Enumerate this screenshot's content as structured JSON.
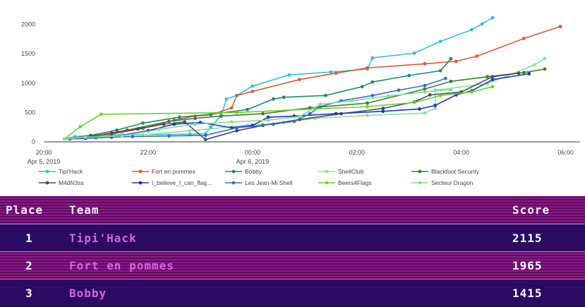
{
  "chart_data": {
    "type": "line",
    "ylim": [
      0,
      2200
    ],
    "y_ticks": [
      0,
      500,
      1000,
      1500,
      2000
    ],
    "x_range_hours": [
      20,
      30.1
    ],
    "x_ticks": [
      {
        "hour": 20,
        "label": "20:00",
        "sublabel": "Apr 5, 2019"
      },
      {
        "hour": 22,
        "label": "22:00",
        "sublabel": ""
      },
      {
        "hour": 24,
        "label": "00:00",
        "sublabel": "Apr 6, 2019"
      },
      {
        "hour": 26,
        "label": "02:00",
        "sublabel": ""
      },
      {
        "hour": 28,
        "label": "04:00",
        "sublabel": ""
      },
      {
        "hour": 30,
        "label": "06:00",
        "sublabel": ""
      }
    ],
    "series": [
      {
        "name": "Tipi'Hack",
        "legend_label": "Tipi'Hack",
        "color": "#2ec4c6",
        "points": [
          [
            20.4,
            50
          ],
          [
            20.6,
            90
          ],
          [
            20.9,
            110
          ],
          [
            21.5,
            120
          ],
          [
            22.8,
            130
          ],
          [
            23.1,
            140
          ],
          [
            23.2,
            250
          ],
          [
            23.4,
            450
          ],
          [
            23.5,
            730
          ],
          [
            23.7,
            790
          ],
          [
            24,
            950
          ],
          [
            24.7,
            1140
          ],
          [
            25.5,
            1190
          ],
          [
            26.2,
            1240
          ],
          [
            26.3,
            1430
          ],
          [
            27.1,
            1510
          ],
          [
            27.6,
            1710
          ],
          [
            28.2,
            1910
          ],
          [
            28.4,
            2010
          ],
          [
            28.6,
            2115
          ]
        ]
      },
      {
        "name": "Fort en pommes",
        "legend_label": "Fort en pommes",
        "color": "#d9593a",
        "points": [
          [
            20.4,
            50
          ],
          [
            20.8,
            90
          ],
          [
            21.3,
            130
          ],
          [
            21.9,
            230
          ],
          [
            22.5,
            370
          ],
          [
            22.9,
            440
          ],
          [
            23.2,
            460
          ],
          [
            23.6,
            580
          ],
          [
            23.7,
            790
          ],
          [
            24,
            860
          ],
          [
            24.9,
            1060
          ],
          [
            25.6,
            1170
          ],
          [
            26.2,
            1260
          ],
          [
            27.3,
            1330
          ],
          [
            27.9,
            1370
          ],
          [
            28.3,
            1460
          ],
          [
            29.2,
            1760
          ],
          [
            29.9,
            1965
          ]
        ]
      },
      {
        "name": "Bobby",
        "legend_label": "Bobby",
        "color": "#1e8c66",
        "points": [
          [
            20.5,
            50
          ],
          [
            20.9,
            110
          ],
          [
            21.4,
            200
          ],
          [
            21.9,
            320
          ],
          [
            22.6,
            420
          ],
          [
            23.2,
            470
          ],
          [
            23.9,
            550
          ],
          [
            24.4,
            730
          ],
          [
            24.6,
            760
          ],
          [
            25.4,
            790
          ],
          [
            26.1,
            940
          ],
          [
            26.3,
            1020
          ],
          [
            27,
            1130
          ],
          [
            27.6,
            1210
          ],
          [
            27.8,
            1415
          ]
        ]
      },
      {
        "name": "ShellClub",
        "legend_label": "ShellClub",
        "color": "#8fe09a",
        "points": [
          [
            20.4,
            50
          ],
          [
            21,
            90
          ],
          [
            21.9,
            120
          ],
          [
            22.8,
            190
          ],
          [
            23.9,
            280
          ],
          [
            24.6,
            330
          ],
          [
            25.2,
            400
          ],
          [
            26.2,
            450
          ],
          [
            27.3,
            490
          ],
          [
            27.5,
            570
          ],
          [
            27.5,
            880
          ],
          [
            28.5,
            990
          ],
          [
            29.4,
            1310
          ],
          [
            29.6,
            1420
          ]
        ]
      },
      {
        "name": "Blackfoot Security",
        "legend_label": "Blackfoot Security",
        "color": "#3f7d2e",
        "points": [
          [
            20.5,
            50
          ],
          [
            20.9,
            90
          ],
          [
            21.6,
            200
          ],
          [
            22.4,
            350
          ],
          [
            22.9,
            400
          ],
          [
            23.4,
            440
          ],
          [
            24.2,
            480
          ],
          [
            25.1,
            580
          ],
          [
            26.2,
            660
          ],
          [
            27.3,
            900
          ],
          [
            27.8,
            1030
          ],
          [
            28.5,
            1110
          ],
          [
            29.2,
            1180
          ],
          [
            29.6,
            1240
          ]
        ]
      },
      {
        "name": "M4dN3ss",
        "legend_label": "M4dN3ss",
        "color": "#3f4f60",
        "points": [
          [
            20.5,
            50
          ],
          [
            20.9,
            90
          ],
          [
            21.3,
            150
          ],
          [
            21.8,
            220
          ],
          [
            22.3,
            300
          ],
          [
            22.7,
            340
          ],
          [
            23.1,
            40
          ],
          [
            23.7,
            190
          ],
          [
            24.2,
            280
          ],
          [
            24.9,
            380
          ],
          [
            25.7,
            480
          ],
          [
            26.5,
            570
          ],
          [
            27.1,
            680
          ],
          [
            27.4,
            800
          ],
          [
            28,
            850
          ],
          [
            28.6,
            1110
          ],
          [
            29.1,
            1170
          ]
        ]
      },
      {
        "name": "I_believe_I_can_flag",
        "legend_label": "I_believe_I_can_flag...",
        "color": "#1f35c4",
        "points": [
          [
            20.5,
            50
          ],
          [
            20.8,
            60
          ],
          [
            21.3,
            80
          ],
          [
            22,
            190
          ],
          [
            22.5,
            300
          ],
          [
            23,
            330
          ],
          [
            23.6,
            240
          ],
          [
            24,
            280
          ],
          [
            24.3,
            420
          ],
          [
            24.8,
            440
          ],
          [
            25.6,
            480
          ],
          [
            26.5,
            520
          ],
          [
            27.2,
            560
          ],
          [
            27.5,
            620
          ],
          [
            27.9,
            800
          ],
          [
            28.2,
            870
          ],
          [
            28.6,
            1060
          ],
          [
            29.3,
            1160
          ]
        ]
      },
      {
        "name": "Les Jean-Mi Shell",
        "legend_label": "Les Jean-Mi Shell",
        "color": "#3a6ad6",
        "points": [
          [
            20.5,
            50
          ],
          [
            21,
            70
          ],
          [
            21.7,
            90
          ],
          [
            22.4,
            100
          ],
          [
            23.1,
            110
          ],
          [
            23.7,
            240
          ],
          [
            24.4,
            300
          ],
          [
            24.8,
            350
          ],
          [
            25.1,
            480
          ],
          [
            25.3,
            600
          ],
          [
            25.7,
            700
          ],
          [
            26.3,
            790
          ],
          [
            26.8,
            880
          ],
          [
            27.3,
            960
          ],
          [
            27.7,
            1080
          ]
        ]
      },
      {
        "name": "Beers4Flags",
        "legend_label": "Beers4Flags",
        "color": "#6ad12a",
        "points": [
          [
            20.4,
            50
          ],
          [
            20.7,
            260
          ],
          [
            21.1,
            470
          ],
          [
            23.7,
            500
          ],
          [
            25.2,
            560
          ],
          [
            26.2,
            600
          ],
          [
            27.1,
            670
          ],
          [
            27.6,
            790
          ],
          [
            28.2,
            850
          ],
          [
            28.6,
            940
          ]
        ]
      },
      {
        "name": "Secteur Dragon",
        "legend_label": "Secteur Dragon",
        "color": "#7fe08d",
        "points": [
          [
            20.4,
            50
          ],
          [
            20.8,
            80
          ],
          [
            21.5,
            100
          ],
          [
            22.2,
            210
          ],
          [
            22.9,
            300
          ],
          [
            23.6,
            340
          ],
          [
            24.3,
            370
          ],
          [
            24.9,
            430
          ],
          [
            25.3,
            640
          ],
          [
            25.9,
            700
          ],
          [
            26.6,
            780
          ],
          [
            27.3,
            850
          ],
          [
            27.8,
            890
          ]
        ]
      }
    ]
  },
  "scoreboard": {
    "headers": {
      "place": "Place",
      "team": "Team",
      "score": "Score"
    },
    "rows": [
      {
        "place": "1",
        "team": "Tipi'Hack",
        "score": "2115"
      },
      {
        "place": "2",
        "team": "Fort en pommes",
        "score": "1965"
      },
      {
        "place": "3",
        "team": "Bobby",
        "score": "1415"
      }
    ]
  }
}
